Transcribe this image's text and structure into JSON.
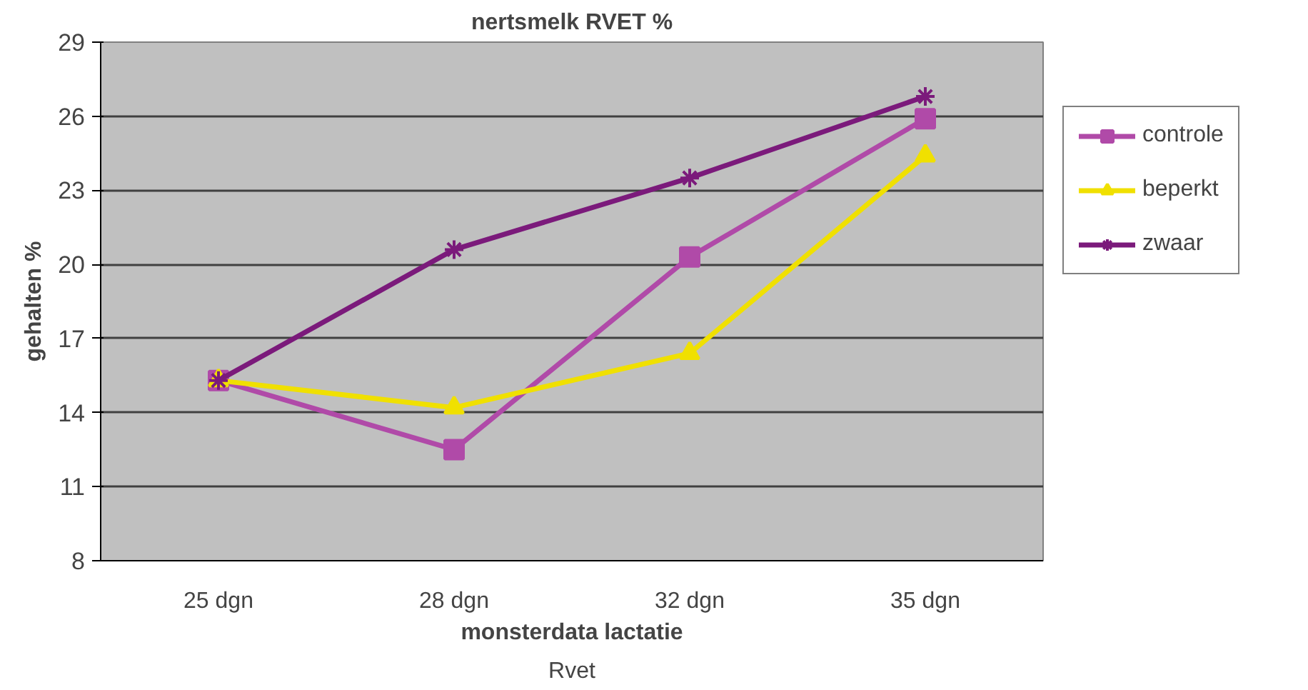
{
  "chart_data": {
    "type": "line",
    "title": "nertsmelk RVET %",
    "xlabel": "monsterdata lactatie",
    "ylabel": "gehalten %",
    "annotations": [
      "Rvet"
    ],
    "categories": [
      "25 dgn",
      "28 dgn",
      "32 dgn",
      "35 dgn"
    ],
    "series": [
      {
        "name": "controle",
        "color": "#b04aa8",
        "marker": "square",
        "values": [
          15.3,
          12.5,
          20.3,
          25.9
        ]
      },
      {
        "name": "beperkt",
        "color": "#f0e000",
        "marker": "triangle",
        "values": [
          15.3,
          14.2,
          16.4,
          24.4
        ]
      },
      {
        "name": "zwaar",
        "color": "#7b1a7b",
        "marker": "cross",
        "values": [
          15.3,
          20.6,
          23.5,
          26.8
        ]
      }
    ],
    "ylim": [
      8,
      29
    ],
    "yticks": [
      8,
      11,
      14,
      17,
      20,
      23,
      26,
      29
    ],
    "grid": "y",
    "legend": "right",
    "line_style": "solid"
  }
}
